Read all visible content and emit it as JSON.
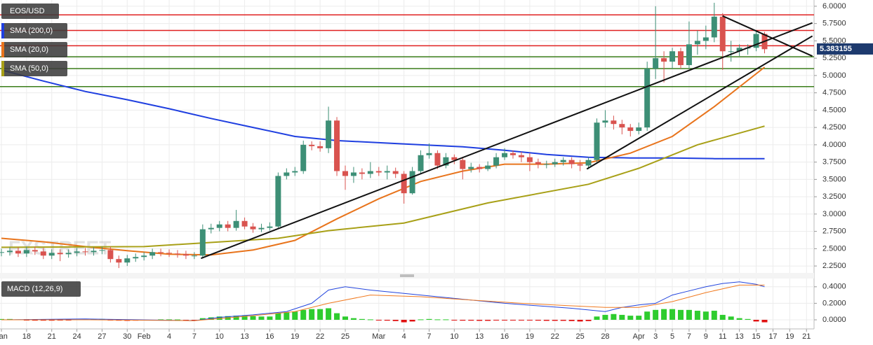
{
  "chart_data": [
    {
      "type": "candlestick",
      "symbol": "EOS/USD",
      "x": [
        0,
        1,
        2,
        3,
        4,
        5,
        6,
        7,
        8,
        9,
        10,
        11,
        12,
        13,
        14,
        15,
        16,
        17,
        18,
        19,
        20,
        21,
        22,
        23,
        24,
        25,
        26,
        27,
        28,
        29,
        30,
        31,
        32,
        33,
        34,
        35,
        36,
        37,
        38,
        39,
        40,
        41,
        42,
        43,
        44,
        45,
        46,
        47,
        48,
        49,
        50,
        51,
        52,
        53,
        54,
        55,
        56,
        57,
        58,
        59,
        60,
        61,
        62,
        63,
        64,
        65,
        66,
        67,
        68,
        69,
        70,
        71,
        72,
        73,
        74,
        75,
        76,
        77,
        78,
        79,
        80,
        81,
        82,
        83,
        84,
        85,
        86,
        87,
        88,
        89,
        90,
        91
      ],
      "open": [
        2.44,
        2.45,
        2.47,
        2.43,
        2.48,
        2.46,
        2.4,
        2.44,
        2.42,
        2.44,
        2.46,
        2.45,
        2.47,
        2.48,
        2.35,
        2.3,
        2.36,
        2.38,
        2.4,
        2.45,
        2.44,
        2.43,
        2.42,
        2.4,
        2.4,
        2.78,
        2.8,
        2.85,
        2.8,
        2.9,
        2.82,
        2.78,
        2.8,
        2.82,
        3.55,
        3.6,
        3.62,
        4.0,
        3.98,
        3.95,
        4.35,
        3.62,
        3.55,
        3.6,
        3.58,
        3.62,
        3.6,
        3.62,
        3.58,
        3.3,
        3.62,
        3.85,
        3.88,
        3.7,
        3.82,
        3.78,
        3.65,
        3.68,
        3.65,
        3.7,
        3.82,
        3.88,
        3.85,
        3.82,
        3.75,
        3.72,
        3.72,
        3.75,
        3.78,
        3.72,
        3.7,
        3.78,
        4.32,
        4.35,
        4.3,
        4.25,
        4.2,
        4.25,
        5.1,
        5.25,
        5.2,
        5.35,
        5.15,
        5.45,
        5.5,
        5.55,
        5.85,
        5.35,
        5.35,
        5.4,
        5.4,
        5.6
      ],
      "high": [
        2.5,
        2.52,
        2.52,
        2.53,
        2.53,
        2.51,
        2.49,
        2.49,
        2.49,
        2.51,
        2.51,
        2.52,
        2.53,
        2.53,
        2.4,
        2.41,
        2.43,
        2.45,
        2.5,
        2.5,
        2.49,
        2.48,
        2.47,
        2.45,
        2.85,
        2.86,
        2.9,
        2.9,
        3.06,
        2.95,
        2.87,
        2.86,
        2.88,
        3.6,
        3.66,
        3.68,
        4.06,
        4.05,
        4.05,
        4.55,
        4.4,
        3.7,
        3.68,
        3.66,
        3.75,
        3.68,
        3.7,
        3.67,
        3.62,
        3.68,
        3.92,
        4.02,
        3.92,
        3.88,
        3.86,
        3.82,
        3.74,
        3.72,
        3.76,
        3.88,
        3.95,
        3.92,
        3.9,
        3.88,
        3.8,
        3.77,
        3.8,
        3.82,
        3.82,
        3.78,
        3.82,
        4.38,
        4.5,
        4.42,
        4.36,
        4.3,
        4.32,
        5.2,
        6.0,
        5.35,
        5.4,
        5.4,
        5.78,
        5.65,
        5.72,
        6.05,
        5.9,
        5.5,
        5.45,
        5.45,
        5.65,
        5.63
      ],
      "low": [
        2.39,
        2.4,
        2.38,
        2.38,
        2.41,
        2.35,
        2.35,
        2.32,
        2.37,
        2.39,
        2.4,
        2.4,
        2.42,
        2.3,
        2.22,
        2.25,
        2.31,
        2.33,
        2.35,
        2.39,
        2.38,
        2.37,
        2.35,
        2.35,
        2.36,
        2.72,
        2.75,
        2.75,
        2.76,
        2.78,
        2.73,
        2.74,
        2.76,
        2.8,
        3.5,
        3.55,
        3.58,
        3.92,
        3.9,
        3.88,
        3.55,
        3.35,
        3.45,
        3.5,
        3.52,
        3.55,
        3.5,
        3.52,
        3.15,
        3.28,
        3.58,
        3.8,
        3.65,
        3.66,
        3.72,
        3.5,
        3.6,
        3.6,
        3.62,
        3.66,
        3.78,
        3.8,
        3.75,
        3.62,
        3.66,
        3.66,
        3.68,
        3.7,
        3.66,
        3.62,
        3.65,
        3.75,
        4.25,
        4.22,
        4.15,
        4.12,
        4.15,
        4.2,
        4.95,
        4.9,
        5.1,
        5.1,
        5.1,
        5.3,
        5.38,
        5.48,
        5.08,
        5.2,
        5.28,
        5.3,
        5.35,
        5.32
      ],
      "close": [
        2.45,
        2.47,
        2.43,
        2.48,
        2.46,
        2.4,
        2.44,
        2.42,
        2.44,
        2.46,
        2.45,
        2.47,
        2.48,
        2.35,
        2.3,
        2.36,
        2.38,
        2.4,
        2.45,
        2.44,
        2.43,
        2.42,
        2.4,
        2.4,
        2.78,
        2.8,
        2.85,
        2.8,
        2.9,
        2.82,
        2.78,
        2.8,
        2.82,
        3.55,
        3.6,
        3.62,
        4.0,
        3.98,
        3.95,
        4.35,
        3.62,
        3.55,
        3.6,
        3.58,
        3.62,
        3.6,
        3.62,
        3.58,
        3.3,
        3.62,
        3.85,
        3.88,
        3.7,
        3.82,
        3.78,
        3.65,
        3.68,
        3.65,
        3.7,
        3.82,
        3.88,
        3.85,
        3.82,
        3.75,
        3.72,
        3.72,
        3.75,
        3.78,
        3.72,
        3.7,
        3.78,
        4.32,
        4.35,
        4.3,
        4.25,
        4.2,
        4.25,
        5.1,
        5.25,
        5.2,
        5.35,
        5.15,
        5.45,
        5.5,
        5.55,
        5.85,
        5.35,
        5.35,
        5.4,
        5.4,
        5.6,
        5.38
      ],
      "up_color": "#3d8f76",
      "down_color": "#d9534f",
      "series": [
        {
          "name": "SMA (200,0)",
          "color": "#1f3fe0",
          "x": [
            0,
            5,
            10,
            15,
            20,
            25,
            30,
            35,
            40,
            45,
            50,
            55,
            60,
            65,
            70,
            75,
            80,
            85,
            91
          ],
          "values": [
            5.08,
            4.92,
            4.77,
            4.65,
            4.52,
            4.38,
            4.25,
            4.12,
            4.06,
            4.03,
            4.0,
            3.97,
            3.92,
            3.86,
            3.82,
            3.81,
            3.81,
            3.8,
            3.8
          ]
        },
        {
          "name": "SMA (20,0)",
          "color": "#e8741c",
          "x": [
            0,
            5,
            10,
            15,
            20,
            25,
            30,
            35,
            40,
            45,
            50,
            55,
            60,
            65,
            70,
            75,
            80,
            85,
            91
          ],
          "values": [
            2.65,
            2.6,
            2.53,
            2.47,
            2.42,
            2.41,
            2.48,
            2.62,
            2.93,
            3.22,
            3.47,
            3.62,
            3.72,
            3.72,
            3.74,
            3.88,
            4.12,
            4.55,
            5.12
          ]
        },
        {
          "name": "SMA (50,0)",
          "color": "#a8a017",
          "x": [
            0,
            17,
            33,
            39,
            48,
            58,
            70,
            76,
            83,
            91
          ],
          "values": [
            2.52,
            2.53,
            2.65,
            2.76,
            2.87,
            3.16,
            3.43,
            3.66,
            4.0,
            4.27
          ]
        }
      ],
      "levels": [
        {
          "value": 5.875,
          "color": "#e02020"
        },
        {
          "value": 5.65,
          "color": "#e02020"
        },
        {
          "value": 5.43,
          "color": "#e02020"
        },
        {
          "value": 5.27,
          "color": "#3a7d1a"
        },
        {
          "value": 5.1,
          "color": "#3a7d1a"
        },
        {
          "value": 4.84,
          "color": "#3a7d1a"
        }
      ],
      "trendlines": [
        {
          "x": [
            23.8,
            96.7
          ],
          "values": [
            2.36,
            5.76
          ]
        },
        {
          "x": [
            69.8,
            96.7
          ],
          "values": [
            3.65,
            5.57
          ]
        },
        {
          "x": [
            86,
            96.7
          ],
          "values": [
            5.86,
            5.28
          ]
        }
      ],
      "last_price": 5.383155,
      "watermark": "FXSTREET",
      "xlim": [
        -0.17,
        96.9
      ],
      "xticks": [
        {
          "value": 0,
          "label": "Jan"
        },
        {
          "value": 3,
          "label": "18"
        },
        {
          "value": 6,
          "label": "21"
        },
        {
          "value": 9,
          "label": "24"
        },
        {
          "value": 12,
          "label": "27"
        },
        {
          "value": 15,
          "label": "30"
        },
        {
          "value": 17,
          "label": "Feb"
        },
        {
          "value": 20,
          "label": "4"
        },
        {
          "value": 23,
          "label": "7"
        },
        {
          "value": 26,
          "label": "10"
        },
        {
          "value": 29,
          "label": "13"
        },
        {
          "value": 32,
          "label": "16"
        },
        {
          "value": 35,
          "label": "19"
        },
        {
          "value": 38,
          "label": "22"
        },
        {
          "value": 41,
          "label": "25"
        },
        {
          "value": 45,
          "label": "Mar"
        },
        {
          "value": 48,
          "label": "4"
        },
        {
          "value": 51,
          "label": "7"
        },
        {
          "value": 54,
          "label": "10"
        },
        {
          "value": 57,
          "label": "13"
        },
        {
          "value": 60,
          "label": "16"
        },
        {
          "value": 63,
          "label": "19"
        },
        {
          "value": 66,
          "label": "22"
        },
        {
          "value": 69,
          "label": "25"
        },
        {
          "value": 72,
          "label": "28"
        },
        {
          "value": 76,
          "label": "Apr"
        },
        {
          "value": 78,
          "label": "3"
        },
        {
          "value": 80,
          "label": "5"
        },
        {
          "value": 82,
          "label": "7"
        },
        {
          "value": 84,
          "label": "9"
        },
        {
          "value": 86,
          "label": "11"
        },
        {
          "value": 88,
          "label": "13"
        },
        {
          "value": 90,
          "label": "15"
        },
        {
          "value": 92,
          "label": "17"
        },
        {
          "value": 94,
          "label": "19"
        },
        {
          "value": 96,
          "label": "21"
        }
      ],
      "ylim": [
        2.15,
        6.09
      ],
      "yticks": [
        {
          "value": 2.25,
          "label": "2.2500"
        },
        {
          "value": 2.5,
          "label": "2.5000"
        },
        {
          "value": 2.75,
          "label": "2.7500"
        },
        {
          "value": 3.0,
          "label": "3.0000"
        },
        {
          "value": 3.25,
          "label": "3.2500"
        },
        {
          "value": 3.5,
          "label": "3.5000"
        },
        {
          "value": 3.75,
          "label": "3.7500"
        },
        {
          "value": 4.0,
          "label": "4.0000"
        },
        {
          "value": 4.25,
          "label": "4.2500"
        },
        {
          "value": 4.5,
          "label": "4.5000"
        },
        {
          "value": 4.75,
          "label": "4.7500"
        },
        {
          "value": 5.0,
          "label": "5.0000"
        },
        {
          "value": 5.25,
          "label": "5.2500"
        },
        {
          "value": 5.5,
          "label": "5.5000"
        },
        {
          "value": 5.75,
          "label": "5.7500"
        },
        {
          "value": 6.0,
          "label": "6.0000"
        }
      ],
      "grid": true
    },
    {
      "type": "bar",
      "title": "MACD (12,26,9)",
      "x": [
        0,
        1,
        2,
        3,
        4,
        5,
        6,
        7,
        8,
        9,
        10,
        11,
        12,
        13,
        14,
        15,
        16,
        17,
        18,
        19,
        20,
        21,
        22,
        23,
        24,
        25,
        26,
        27,
        28,
        29,
        30,
        31,
        32,
        33,
        34,
        35,
        36,
        37,
        38,
        39,
        40,
        41,
        42,
        43,
        44,
        45,
        46,
        47,
        48,
        49,
        50,
        51,
        52,
        53,
        54,
        55,
        56,
        57,
        58,
        59,
        60,
        61,
        62,
        63,
        64,
        65,
        66,
        67,
        68,
        69,
        70,
        71,
        72,
        73,
        74,
        75,
        76,
        77,
        78,
        79,
        80,
        81,
        82,
        83,
        84,
        85,
        86,
        87,
        88,
        89,
        90,
        91
      ],
      "values": [
        0.01,
        0.01,
        0.005,
        -0.005,
        -0.01,
        -0.01,
        -0.01,
        -0.008,
        -0.005,
        0.005,
        0.005,
        0.008,
        0.01,
        -0.005,
        -0.01,
        -0.012,
        -0.01,
        -0.008,
        -0.005,
        0.005,
        0.005,
        0.004,
        -0.003,
        -0.005,
        0.02,
        0.03,
        0.04,
        0.045,
        0.05,
        0.05,
        0.045,
        0.04,
        0.04,
        0.08,
        0.09,
        0.1,
        0.12,
        0.13,
        0.13,
        0.14,
        0.08,
        0.04,
        0.02,
        0.01,
        0.005,
        -0.005,
        -0.01,
        -0.015,
        -0.03,
        -0.02,
        0.005,
        0.01,
        0.005,
        0.005,
        -0.005,
        -0.01,
        -0.01,
        -0.012,
        -0.012,
        -0.008,
        -0.005,
        -0.005,
        -0.006,
        -0.008,
        -0.01,
        -0.012,
        -0.012,
        -0.012,
        -0.015,
        -0.02,
        -0.015,
        0.04,
        0.06,
        0.07,
        0.06,
        0.05,
        0.05,
        0.1,
        0.12,
        0.13,
        0.13,
        0.12,
        0.12,
        0.11,
        0.1,
        0.11,
        0.06,
        0.04,
        0.02,
        0.01,
        -0.02,
        -0.03
      ],
      "up_color": "#2ecc2e",
      "down_color": "#e01010",
      "series": [
        {
          "color": "#2244dd",
          "x": [
            0,
            10,
            23,
            26,
            30,
            34,
            37,
            39,
            41,
            44,
            48,
            52,
            56,
            60,
            64,
            68,
            70,
            72,
            74,
            76,
            78,
            80,
            82,
            84,
            86,
            88,
            90,
            91
          ],
          "values": [
            0.0,
            0.01,
            -0.01,
            0.03,
            0.06,
            0.1,
            0.2,
            0.36,
            0.4,
            0.36,
            0.32,
            0.28,
            0.24,
            0.2,
            0.17,
            0.14,
            0.12,
            0.1,
            0.15,
            0.18,
            0.2,
            0.3,
            0.35,
            0.4,
            0.44,
            0.46,
            0.43,
            0.4
          ]
        },
        {
          "color": "#f07a20",
          "x": [
            0,
            10,
            23,
            30,
            35,
            39,
            44,
            50,
            56,
            62,
            68,
            72,
            76,
            80,
            84,
            88,
            91
          ],
          "values": [
            0.0,
            0.0,
            -0.01,
            0.05,
            0.1,
            0.2,
            0.3,
            0.28,
            0.24,
            0.2,
            0.17,
            0.15,
            0.15,
            0.22,
            0.33,
            0.42,
            0.42
          ]
        }
      ],
      "ylim": [
        -0.11,
        0.5
      ],
      "yticks": [
        {
          "value": 0.0,
          "label": "0.0000"
        },
        {
          "value": 0.2,
          "label": "0.2000"
        },
        {
          "value": 0.4,
          "label": "0.4000"
        }
      ],
      "grid": true
    }
  ]
}
